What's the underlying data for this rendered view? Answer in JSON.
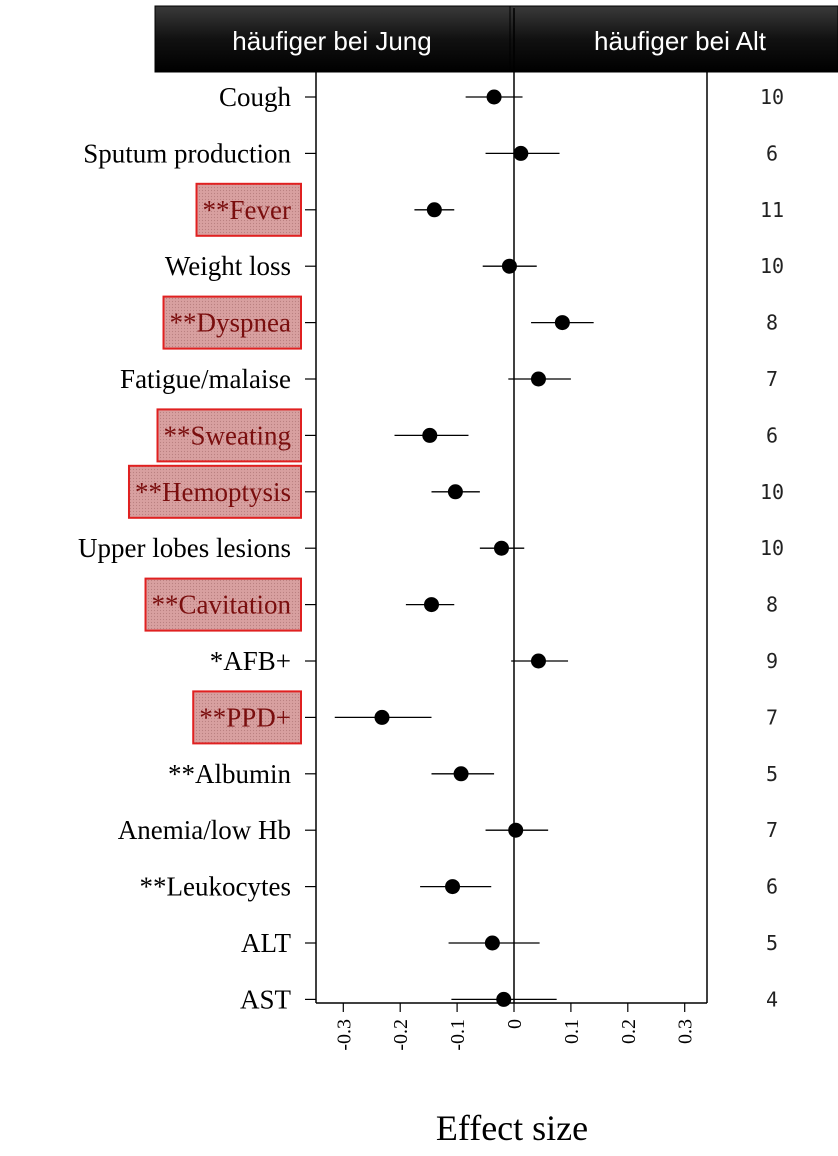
{
  "header": {
    "left_label": "häufiger bei Jung",
    "right_label": "häufiger bei Alt"
  },
  "colors": {
    "header_bg": "#1a1a1a",
    "highlight_fill": "#d9a3a3",
    "highlight_border": "#e02020",
    "marker": "#000000"
  },
  "chart_data": {
    "type": "scatter",
    "subtype": "forest-plot",
    "title": "",
    "xlabel": "Effect size",
    "ylabel": "",
    "xlim": [
      -0.34,
      0.34
    ],
    "xticks": [
      -0.3,
      -0.2,
      -0.1,
      0,
      0.1,
      0.2,
      0.3
    ],
    "xtick_labels": [
      "-0.3",
      "-0.2",
      "-0.1",
      "0",
      "0.1",
      "0.2",
      "0.3"
    ],
    "reference_line": 0,
    "grid": false,
    "rows": [
      {
        "label": "Cough",
        "estimate": -0.035,
        "ci": [
          -0.085,
          0.015
        ],
        "n": "10",
        "highlight": false
      },
      {
        "label": "Sputum production",
        "estimate": 0.012,
        "ci": [
          -0.05,
          0.08
        ],
        "n": "6",
        "highlight": false
      },
      {
        "label": "**Fever",
        "estimate": -0.14,
        "ci": [
          -0.175,
          -0.105
        ],
        "n": "11",
        "highlight": true
      },
      {
        "label": "Weight loss",
        "estimate": -0.008,
        "ci": [
          -0.055,
          0.04
        ],
        "n": "10",
        "highlight": false
      },
      {
        "label": "**Dyspnea",
        "estimate": 0.085,
        "ci": [
          0.03,
          0.14
        ],
        "n": "8",
        "highlight": true
      },
      {
        "label": "Fatigue/malaise",
        "estimate": 0.043,
        "ci": [
          -0.01,
          0.1
        ],
        "n": "7",
        "highlight": false
      },
      {
        "label": "**Sweating",
        "estimate": -0.148,
        "ci": [
          -0.21,
          -0.08
        ],
        "n": "6",
        "highlight": true
      },
      {
        "label": "**Hemoptysis",
        "estimate": -0.103,
        "ci": [
          -0.145,
          -0.06
        ],
        "n": "10",
        "highlight": true
      },
      {
        "label": "Upper lobes lesions",
        "estimate": -0.022,
        "ci": [
          -0.06,
          0.018
        ],
        "n": "10",
        "highlight": false
      },
      {
        "label": "**Cavitation",
        "estimate": -0.145,
        "ci": [
          -0.19,
          -0.105
        ],
        "n": "8",
        "highlight": true
      },
      {
        "label": "*AFB+",
        "estimate": 0.043,
        "ci": [
          -0.005,
          0.095
        ],
        "n": "9",
        "highlight": false
      },
      {
        "label": "**PPD+",
        "estimate": -0.232,
        "ci": [
          -0.315,
          -0.145
        ],
        "n": "7",
        "highlight": true
      },
      {
        "label": "**Albumin",
        "estimate": -0.093,
        "ci": [
          -0.145,
          -0.035
        ],
        "n": "5",
        "highlight": false
      },
      {
        "label": "Anemia/low Hb",
        "estimate": 0.003,
        "ci": [
          -0.05,
          0.06
        ],
        "n": "7",
        "highlight": false
      },
      {
        "label": "**Leukocytes",
        "estimate": -0.108,
        "ci": [
          -0.165,
          -0.04
        ],
        "n": "6",
        "highlight": false
      },
      {
        "label": "ALT",
        "estimate": -0.038,
        "ci": [
          -0.115,
          0.045
        ],
        "n": "5",
        "highlight": false
      },
      {
        "label": "AST",
        "estimate": -0.018,
        "ci": [
          -0.11,
          0.075
        ],
        "n": "4",
        "highlight": false
      }
    ]
  }
}
